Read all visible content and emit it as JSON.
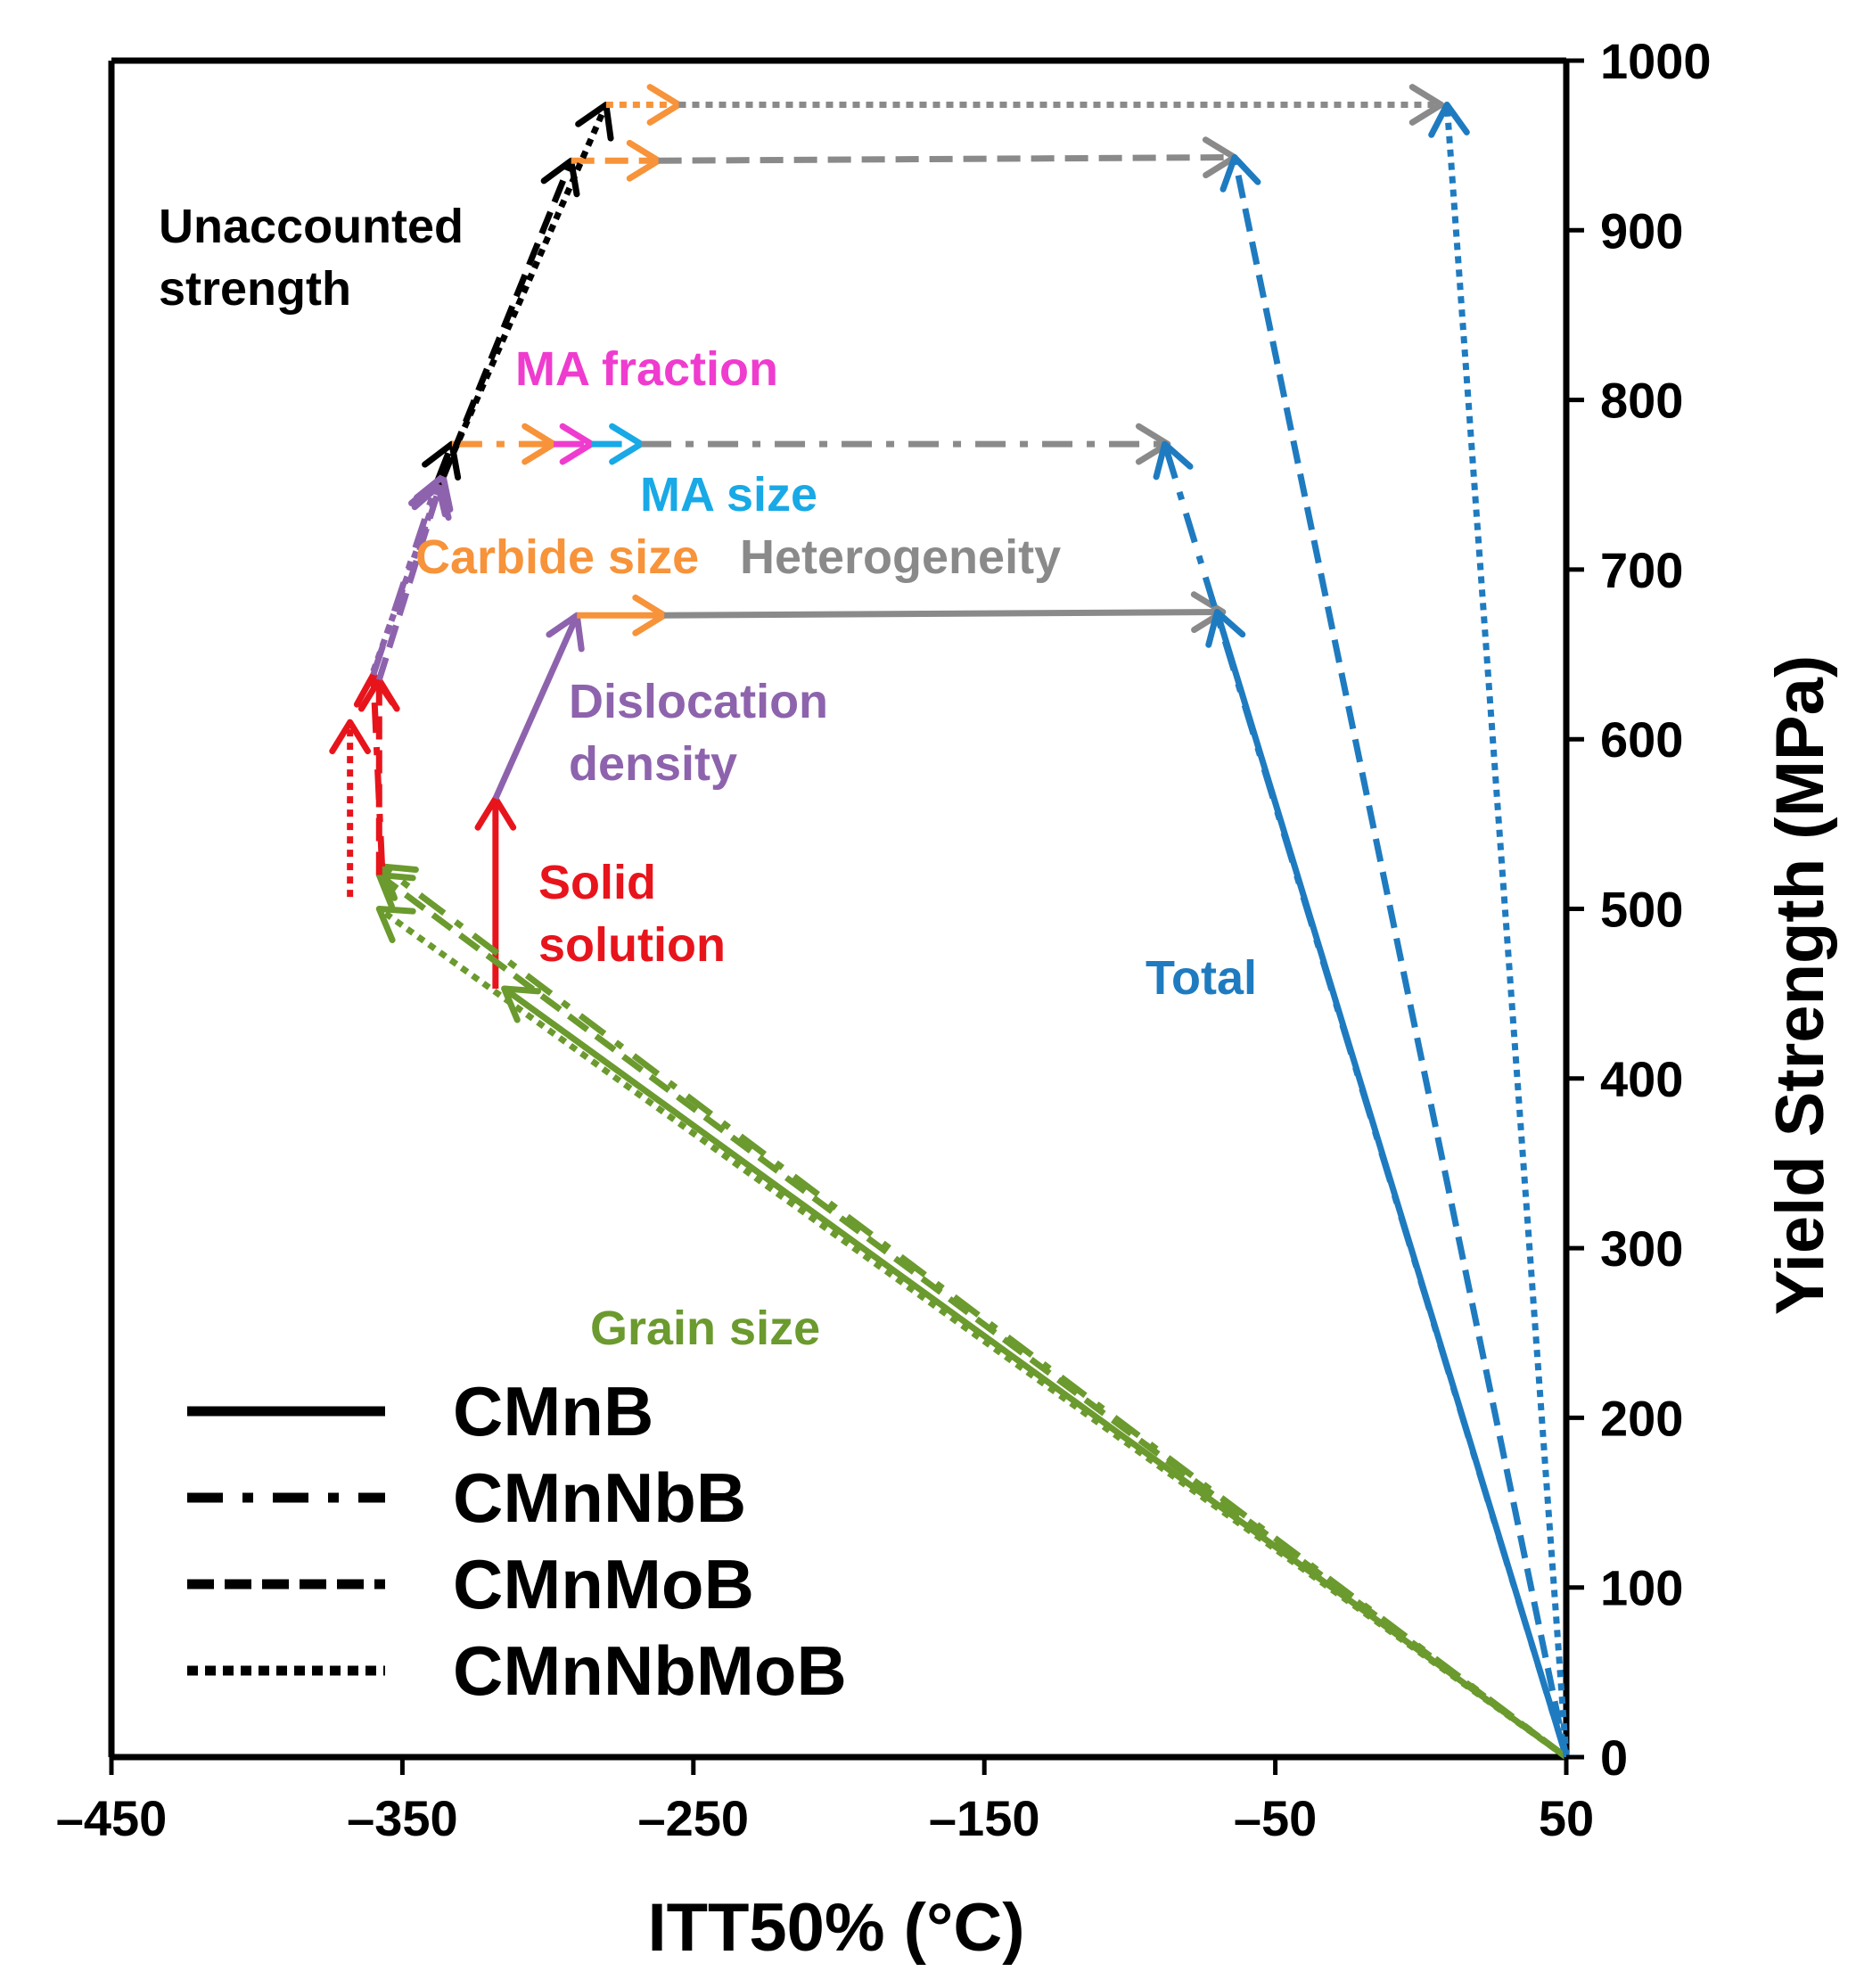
{
  "chart_data": {
    "type": "vector-arrows",
    "title": "",
    "xlabel": "ITT50% (°C)",
    "ylabel": "Yield Strength (MPa)",
    "xlim": [
      -450,
      50
    ],
    "ylim": [
      0,
      1000
    ],
    "x_ticks": [
      "–450",
      "–350",
      "–250",
      "–150",
      "–50",
      "50"
    ],
    "x_tick_values": [
      -450,
      -350,
      -250,
      -150,
      -50,
      50
    ],
    "y_ticks": [
      "0",
      "100",
      "200",
      "300",
      "400",
      "500",
      "600",
      "700",
      "800",
      "900",
      "1000"
    ],
    "y_tick_values": [
      0,
      100,
      200,
      300,
      400,
      500,
      600,
      700,
      800,
      900,
      1000
    ],
    "colors": {
      "grain_size": "#6b9a2e",
      "solid_solution": "#e8141c",
      "dislocation_density": "#8e63ad",
      "carbide_size": "#f7933a",
      "ma_fraction": "#ef3ccf",
      "ma_size": "#18a9e6",
      "heterogeneity": "#8a8a8a",
      "unaccounted": "#000000",
      "total": "#1f7bc0"
    },
    "annotations": [
      {
        "key": "unaccounted",
        "lines": [
          "Unaccounted",
          "strength"
        ]
      },
      {
        "key": "ma_fraction",
        "lines": [
          "MA fraction"
        ]
      },
      {
        "key": "ma_size",
        "lines": [
          "MA size"
        ]
      },
      {
        "key": "carbide_size",
        "lines": [
          "Carbide size"
        ]
      },
      {
        "key": "heterogeneity",
        "lines": [
          "Heterogeneity"
        ]
      },
      {
        "key": "dislocation_density",
        "lines": [
          "Dislocation",
          "density"
        ]
      },
      {
        "key": "solid_solution",
        "lines": [
          "Solid",
          "solution"
        ]
      },
      {
        "key": "total",
        "lines": [
          "Total"
        ]
      },
      {
        "key": "grain_size",
        "lines": [
          "Grain size"
        ]
      }
    ],
    "legend": [
      {
        "name": "CMnB",
        "style": "solid"
      },
      {
        "name": "CMnNbB",
        "style": "dashdot"
      },
      {
        "name": "CMnMoB",
        "style": "dashed"
      },
      {
        "name": "CMnNbMoB",
        "style": "dotted"
      }
    ],
    "series": [
      {
        "name": "CMnB",
        "style": "solid",
        "arrows": [
          {
            "component": "grain_size",
            "from": [
              50,
              0
            ],
            "to": [
              -315,
              453
            ]
          },
          {
            "component": "solid_solution",
            "from": [
              -318,
              453
            ],
            "to": [
              -318,
              565
            ]
          },
          {
            "component": "dislocation_density",
            "from": [
              -318,
              565
            ],
            "to": [
              -290,
              673
            ]
          },
          {
            "component": "carbide_size",
            "from": [
              -290,
              673
            ],
            "to": [
              -260,
              673
            ]
          },
          {
            "component": "heterogeneity",
            "from": [
              -260,
              673
            ],
            "to": [
              -68,
              675
            ]
          },
          {
            "component": "total",
            "from": [
              50,
              0
            ],
            "to": [
              -70,
              675
            ]
          }
        ]
      },
      {
        "name": "CMnNbB",
        "style": "dashdot",
        "arrows": [
          {
            "component": "grain_size",
            "from": [
              50,
              0
            ],
            "to": [
              -357,
              525
            ]
          },
          {
            "component": "solid_solution",
            "from": [
              -357,
              525
            ],
            "to": [
              -360,
              638
            ]
          },
          {
            "component": "dislocation_density",
            "from": [
              -360,
              638
            ],
            "to": [
              -338,
              752
            ]
          },
          {
            "component": "unaccounted",
            "from": [
              -338,
              752
            ],
            "to": [
              -333,
              774
            ]
          },
          {
            "component": "carbide_size",
            "from": [
              -333,
              774
            ],
            "to": [
              -298,
              774
            ]
          },
          {
            "component": "ma_fraction",
            "from": [
              -298,
              774
            ],
            "to": [
              -285,
              774
            ]
          },
          {
            "component": "ma_size",
            "from": [
              -285,
              774
            ],
            "to": [
              -268,
              774
            ]
          },
          {
            "component": "heterogeneity",
            "from": [
              -268,
              774
            ],
            "to": [
              -87,
              774
            ]
          },
          {
            "component": "total",
            "from": [
              50,
              0
            ],
            "to": [
              -88,
              774
            ]
          }
        ]
      },
      {
        "name": "CMnMoB",
        "style": "dashed",
        "arrows": [
          {
            "component": "grain_size",
            "from": [
              50,
              0
            ],
            "to": [
              -358,
              520
            ]
          },
          {
            "component": "solid_solution",
            "from": [
              -358,
              520
            ],
            "to": [
              -358,
              635
            ]
          },
          {
            "component": "dislocation_density",
            "from": [
              -358,
              635
            ],
            "to": [
              -337,
              750
            ]
          },
          {
            "component": "unaccounted",
            "from": [
              -337,
              750
            ],
            "to": [
              -292,
              941
            ]
          },
          {
            "component": "carbide_size",
            "from": [
              -292,
              941
            ],
            "to": [
              -262,
              941
            ]
          },
          {
            "component": "heterogeneity",
            "from": [
              -262,
              941
            ],
            "to": [
              -64,
              943
            ]
          },
          {
            "component": "total",
            "from": [
              50,
              0
            ],
            "to": [
              -64,
              943
            ]
          }
        ]
      },
      {
        "name": "CMnNbMoB",
        "style": "dotted",
        "arrows": [
          {
            "component": "grain_size",
            "from": [
              50,
              0
            ],
            "to": [
              -358,
              500
            ]
          },
          {
            "component": "solid_solution",
            "from": [
              -368,
              507
            ],
            "to": [
              -368,
              610
            ]
          },
          {
            "component": "dislocation_density",
            "from": [
              -360,
              640
            ],
            "to": [
              -336,
              755
            ]
          },
          {
            "component": "unaccounted",
            "from": [
              -336,
              755
            ],
            "to": [
              -280,
              974
            ]
          },
          {
            "component": "carbide_size",
            "from": [
              -280,
              974
            ],
            "to": [
              -255,
              974
            ]
          },
          {
            "component": "heterogeneity",
            "from": [
              -255,
              974
            ],
            "to": [
              7,
              974
            ]
          },
          {
            "component": "total",
            "from": [
              50,
              0
            ],
            "to": [
              9,
              974
            ]
          }
        ]
      }
    ]
  }
}
